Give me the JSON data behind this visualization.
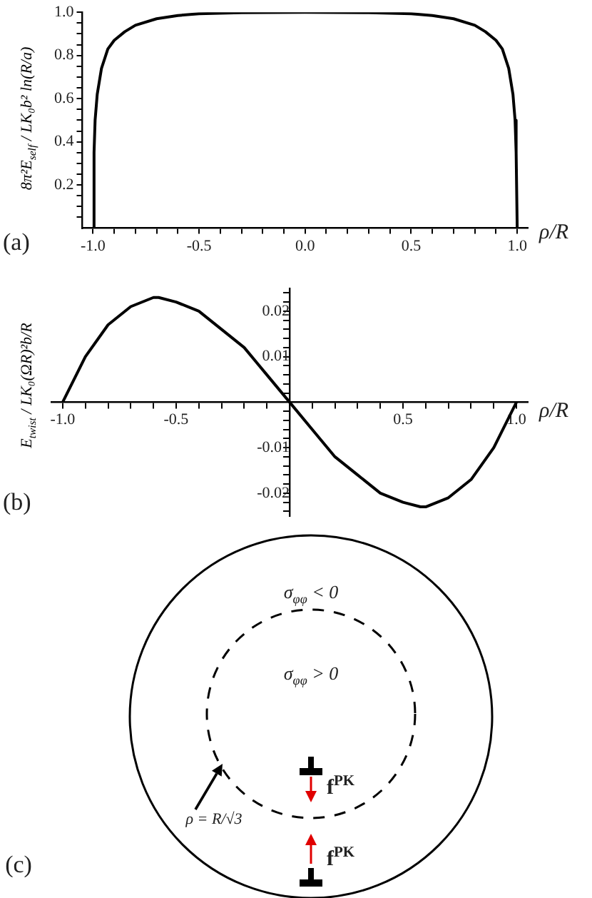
{
  "chart_data": [
    {
      "type": "line",
      "ylabel": "8π²E$_{self}$ / LK₀b² ln(R/a)",
      "xlabel": "ρ/R",
      "annotations": [
        "(a)"
      ],
      "marker": "none",
      "x": [
        -1,
        -0.995,
        -0.99,
        -0.98,
        -0.96,
        -0.93,
        -0.9,
        -0.85,
        -0.8,
        -0.7,
        -0.6,
        -0.5,
        -0.3,
        0,
        0.3,
        0.5,
        0.6,
        0.7,
        0.8,
        0.85,
        0.9,
        0.93,
        0.96,
        0.98,
        0.99,
        0.995,
        1
      ],
      "series": [
        {
          "color": "#000000",
          "values": [
            0,
            0.35,
            0.5,
            0.62,
            0.74,
            0.83,
            0.87,
            0.91,
            0.94,
            0.97,
            0.985,
            0.993,
            0.998,
            1,
            0.998,
            0.993,
            0.985,
            0.97,
            0.94,
            0.91,
            0.87,
            0.83,
            0.74,
            0.62,
            0.5,
            0.35,
            0
          ]
        }
      ],
      "xlim": [
        -1.05,
        1.05
      ],
      "xticks": [
        {
          "value": -1,
          "label": "-1.0"
        },
        {
          "value": -0.9,
          "label": null
        },
        {
          "value": -0.8,
          "label": null
        },
        {
          "value": -0.7,
          "label": null
        },
        {
          "value": -0.6,
          "label": null
        },
        {
          "value": -0.5,
          "label": "-0.5"
        },
        {
          "value": -0.4,
          "label": null
        },
        {
          "value": -0.3,
          "label": null
        },
        {
          "value": -0.2,
          "label": null
        },
        {
          "value": -0.1,
          "label": null
        },
        {
          "value": 0,
          "label": "0.0"
        },
        {
          "value": 0.1,
          "label": null
        },
        {
          "value": 0.2,
          "label": null
        },
        {
          "value": 0.3,
          "label": null
        },
        {
          "value": 0.4,
          "label": null
        },
        {
          "value": 0.5,
          "label": "0.5"
        },
        {
          "value": 0.6,
          "label": null
        },
        {
          "value": 0.7,
          "label": null
        },
        {
          "value": 0.8,
          "label": null
        },
        {
          "value": 0.9,
          "label": null
        },
        {
          "value": 1,
          "label": "1.0"
        }
      ],
      "ylim": [
        0,
        1
      ],
      "yticks": [
        {
          "value": 0.05,
          "label": null
        },
        {
          "value": 0.1,
          "label": null
        },
        {
          "value": 0.15,
          "label": null
        },
        0.2,
        {
          "value": 0.25,
          "label": null
        },
        {
          "value": 0.3,
          "label": null
        },
        {
          "value": 0.35,
          "label": null
        },
        0.4,
        {
          "value": 0.45,
          "label": null
        },
        {
          "value": 0.5,
          "label": null
        },
        {
          "value": 0.55,
          "label": null
        },
        0.6,
        {
          "value": 0.65,
          "label": null
        },
        {
          "value": 0.7,
          "label": null
        },
        {
          "value": 0.75,
          "label": null
        },
        0.8,
        {
          "value": 0.85,
          "label": null
        },
        {
          "value": 0.9,
          "label": null
        },
        {
          "value": 0.95,
          "label": null
        },
        {
          "value": 1,
          "label": "1.0"
        }
      ]
    },
    {
      "type": "line",
      "ylabel": "E$_{twist}$ / LK₀(ΩR)²b/R",
      "xlabel": "ρ/R",
      "annotations": [
        "(b)"
      ],
      "marker": "none",
      "x": [
        -1,
        -0.9,
        -0.8,
        -0.7,
        -0.6,
        -0.577,
        -0.5,
        -0.4,
        -0.3,
        -0.2,
        -0.1,
        0,
        0.1,
        0.2,
        0.3,
        0.4,
        0.5,
        0.577,
        0.6,
        0.7,
        0.8,
        0.9,
        1
      ],
      "series": [
        {
          "color": "#000000",
          "values": [
            0,
            0.01,
            0.017,
            0.021,
            0.023,
            0.023,
            0.022,
            0.02,
            0.016,
            0.012,
            0.006,
            0,
            -0.006,
            -0.012,
            -0.016,
            -0.02,
            -0.022,
            -0.023,
            -0.023,
            -0.021,
            -0.017,
            -0.01,
            0
          ]
        }
      ],
      "xlim": [
        -1.05,
        1.05
      ],
      "xticks": [
        {
          "value": -1,
          "label": "-1.0"
        },
        {
          "value": -0.9,
          "label": null
        },
        {
          "value": -0.8,
          "label": null
        },
        {
          "value": -0.7,
          "label": null
        },
        {
          "value": -0.6,
          "label": null
        },
        {
          "value": -0.5,
          "label": "-0.5"
        },
        {
          "value": -0.4,
          "label": null
        },
        {
          "value": -0.3,
          "label": null
        },
        {
          "value": -0.2,
          "label": null
        },
        {
          "value": -0.1,
          "label": null
        },
        {
          "value": 0.1,
          "label": null
        },
        {
          "value": 0.2,
          "label": null
        },
        {
          "value": 0.3,
          "label": null
        },
        {
          "value": 0.4,
          "label": null
        },
        {
          "value": 0.5,
          "label": "0.5"
        },
        {
          "value": 0.6,
          "label": null
        },
        {
          "value": 0.7,
          "label": null
        },
        {
          "value": 0.8,
          "label": null
        },
        {
          "value": 0.9,
          "label": null
        },
        {
          "value": 1,
          "label": "1.0"
        }
      ],
      "ylim": [
        -0.025,
        0.025
      ],
      "yticks": [
        {
          "value": -0.024,
          "label": null
        },
        {
          "value": -0.022,
          "label": null
        },
        -0.02,
        {
          "value": -0.018,
          "label": null
        },
        {
          "value": -0.016,
          "label": null
        },
        {
          "value": -0.014,
          "label": null
        },
        {
          "value": -0.012,
          "label": null
        },
        -0.01,
        {
          "value": -0.008,
          "label": null
        },
        {
          "value": -0.006,
          "label": null
        },
        {
          "value": -0.004,
          "label": null
        },
        {
          "value": -0.002,
          "label": null
        },
        {
          "value": 0.002,
          "label": null
        },
        {
          "value": 0.004,
          "label": null
        },
        {
          "value": 0.006,
          "label": null
        },
        {
          "value": 0.008,
          "label": null
        },
        0.01,
        {
          "value": 0.012,
          "label": null
        },
        {
          "value": 0.014,
          "label": null
        },
        {
          "value": 0.016,
          "label": null
        },
        {
          "value": 0.018,
          "label": null
        },
        0.02,
        {
          "value": 0.022,
          "label": null
        },
        {
          "value": 0.024,
          "label": null
        }
      ]
    },
    {
      "type": "other",
      "annotations": [
        "σ$_{φφ}$ < 0",
        "σ$_{φφ}$ > 0",
        "f$^{PK}$",
        "f$^{PK}$",
        "ρ = R/√3",
        "(c)"
      ]
    }
  ]
}
